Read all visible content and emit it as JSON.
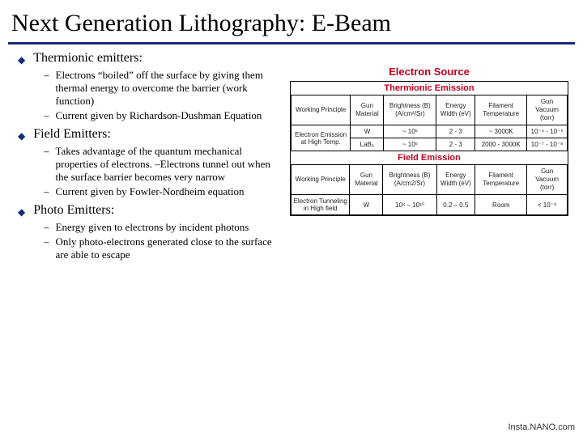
{
  "title": "Next Generation Lithography: E-Beam",
  "bullets": [
    {
      "label": "Thermionic emitters:",
      "subs": [
        "Electrons “boiled” off the surface by giving them thermal energy to overcome the barrier (work function)",
        "Current given by Richardson-Dushman Equation"
      ]
    },
    {
      "label": "Field Emitters:",
      "subs": [
        "Takes advantage of the quantum mechanical properties of electrons. –Electrons tunnel out when the surface barrier becomes very narrow",
        "Current given by Fowler-Nordheim equation"
      ]
    },
    {
      "label": "Photo Emitters:",
      "subs": [
        "Energy given to electrons by incident photons",
        "Only photo-electrons generated close to the surface are able to escape"
      ]
    }
  ],
  "table": {
    "main_title": "Electron Source",
    "section1": {
      "title": "Thermionic Emission",
      "headers": [
        "Working\nPrinciple",
        "Gun Material",
        "Brightness (B)\n(A/cm²/Sr)",
        "Energy\nWidth (eV)",
        "Filament\nTemperature",
        "Gun\nVacuum (torr)"
      ],
      "rows": [
        [
          "Electron Emission at High Temp.",
          "W",
          "~ 10⁶",
          "2 - 3",
          "~ 3000K",
          "10⁻⁴ - 10⁻⁵"
        ],
        [
          "",
          "LaB₆",
          "~ 10⁶",
          "2 - 3",
          "2000 - 3000K",
          "10⁻⁷ - 10⁻⁸"
        ]
      ]
    },
    "section2": {
      "title": "Field Emission",
      "headers": [
        "Working\nPrinciple",
        "Gun Material",
        "Brightness (B)\n(A/cm2/Sr)",
        "Energy\nWidth (eV)",
        "Filament\nTemperature",
        "Gun\nVacuum (torr)"
      ],
      "rows": [
        [
          "Electron Tunneling in High field",
          "W",
          "10⁸ – 10¹⁰",
          "0.2 – 0.5",
          "Room",
          "< 10⁻⁹"
        ]
      ]
    }
  },
  "footer": "Insta.NANO.com",
  "colors": {
    "rule": "#1a2a7a",
    "bullet": "#1a2a7a",
    "red": "#c00020"
  }
}
